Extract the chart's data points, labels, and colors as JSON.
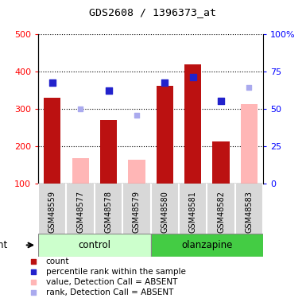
{
  "title": "GDS2608 / 1396373_at",
  "samples": [
    "GSM48559",
    "GSM48577",
    "GSM48578",
    "GSM48579",
    "GSM48580",
    "GSM48581",
    "GSM48582",
    "GSM48583"
  ],
  "count_values": [
    330,
    null,
    270,
    null,
    362,
    420,
    213,
    null
  ],
  "count_absent_values": [
    null,
    168,
    null,
    163,
    null,
    null,
    null,
    313
  ],
  "rank_pct_values": [
    67.5,
    null,
    62,
    null,
    67.5,
    71.25,
    55.5,
    null
  ],
  "rank_pct_absent": [
    null,
    50,
    null,
    45.75,
    null,
    null,
    null,
    64.5
  ],
  "bar_color_present": "#bb1111",
  "bar_color_absent": "#ffb6b6",
  "dot_color_present": "#2222cc",
  "dot_color_absent": "#aaaaee",
  "ylim_left": [
    100,
    500
  ],
  "ylim_right": [
    0,
    100
  ],
  "yticks_left": [
    100,
    200,
    300,
    400,
    500
  ],
  "yticks_right": [
    0,
    25,
    50,
    75,
    100
  ],
  "control_color_light": "#ccffcc",
  "olanzapine_color_dark": "#44cc44",
  "bar_width": 0.6,
  "figsize": [
    3.85,
    3.75
  ],
  "dpi": 100
}
